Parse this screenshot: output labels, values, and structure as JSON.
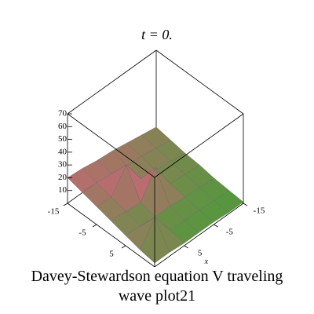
{
  "chart_data": {
    "type": "surface3d",
    "title": "t = 0.",
    "caption": "Davey-Stewardson equation V traveling wave plot21",
    "xlabel": "x",
    "x": [
      -15,
      -10,
      -5,
      0,
      5,
      10,
      15
    ],
    "y": [
      -15,
      -10,
      -5,
      0,
      5,
      10,
      15
    ],
    "z": [
      [
        10,
        8,
        6,
        5,
        3,
        2,
        1
      ],
      [
        12,
        10,
        8,
        6,
        4,
        2,
        1
      ],
      [
        14,
        12,
        9,
        7,
        5,
        3,
        2
      ],
      [
        16,
        13,
        11,
        28,
        6,
        3,
        2
      ],
      [
        17,
        15,
        30,
        9,
        6,
        4,
        2
      ],
      [
        19,
        16,
        13,
        10,
        7,
        22,
        3
      ],
      [
        20,
        17,
        14,
        11,
        8,
        5,
        3
      ]
    ],
    "xlim": [
      -15,
      15
    ],
    "ylim": [
      -15,
      15
    ],
    "zlim": [
      0,
      70
    ],
    "xticks": [
      -15,
      -5,
      5
    ],
    "yticks": [
      -15,
      -5,
      5
    ],
    "zticks": [
      10,
      20,
      30,
      40,
      50,
      60,
      70
    ],
    "colors": {
      "low": "#4f9a3a",
      "high": "#d6607e"
    },
    "box": true
  }
}
